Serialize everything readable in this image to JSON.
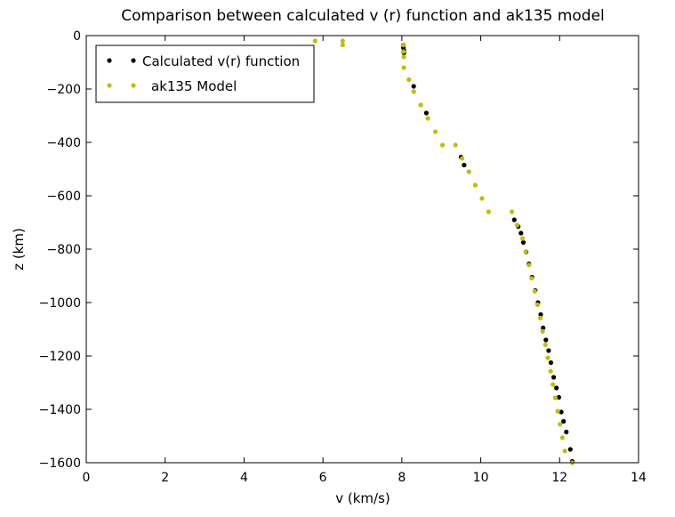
{
  "chart_data": {
    "type": "scatter",
    "title": "Comparison between calculated v (r) function and ak135 model",
    "xlabel": "v (km/s)",
    "ylabel": "z (km)",
    "xlim": [
      0,
      14
    ],
    "ylim": [
      -1600,
      0
    ],
    "xticks": [
      "0",
      "2",
      "4",
      "6",
      "8",
      "10",
      "12",
      "14"
    ],
    "yticks": [
      "0",
      "−200",
      "−400",
      "−600",
      "−800",
      "−1000",
      "−1200",
      "−1400",
      "−1600"
    ],
    "grid": false,
    "legend_position": "top-left",
    "series": [
      {
        "name": "Calculated v(r) function",
        "color": "#000000",
        "points": [
          [
            8.04,
            -35
          ],
          [
            8.04,
            -45
          ],
          [
            8.05,
            -55
          ],
          [
            8.05,
            -65
          ],
          [
            8.3,
            -190
          ],
          [
            8.62,
            -290
          ],
          [
            9.5,
            -455
          ],
          [
            9.58,
            -485
          ],
          [
            10.85,
            -690
          ],
          [
            10.95,
            -715
          ],
          [
            11.02,
            -740
          ],
          [
            11.08,
            -775
          ],
          [
            11.15,
            -810
          ],
          [
            11.22,
            -855
          ],
          [
            11.3,
            -905
          ],
          [
            11.38,
            -955
          ],
          [
            11.45,
            -1000
          ],
          [
            11.52,
            -1045
          ],
          [
            11.58,
            -1095
          ],
          [
            11.65,
            -1140
          ],
          [
            11.72,
            -1180
          ],
          [
            11.78,
            -1225
          ],
          [
            11.85,
            -1280
          ],
          [
            11.92,
            -1320
          ],
          [
            11.98,
            -1355
          ],
          [
            12.04,
            -1410
          ],
          [
            12.1,
            -1445
          ],
          [
            12.17,
            -1485
          ],
          [
            12.27,
            -1550
          ],
          [
            12.32,
            -1595
          ]
        ]
      },
      {
        "name": "ak135 Model",
        "color": "#bfbf00",
        "points": [
          [
            5.8,
            -20
          ],
          [
            6.5,
            -20
          ],
          [
            6.5,
            -35
          ],
          [
            8.04,
            -35
          ],
          [
            8.04,
            -60
          ],
          [
            8.05,
            -80
          ],
          [
            8.05,
            -120
          ],
          [
            8.18,
            -165
          ],
          [
            8.3,
            -210
          ],
          [
            8.48,
            -260
          ],
          [
            8.66,
            -310
          ],
          [
            8.85,
            -360
          ],
          [
            9.03,
            -410
          ],
          [
            9.36,
            -410
          ],
          [
            9.53,
            -460
          ],
          [
            9.7,
            -510
          ],
          [
            9.86,
            -560
          ],
          [
            10.03,
            -610
          ],
          [
            10.2,
            -660
          ],
          [
            10.79,
            -660
          ],
          [
            10.92,
            -710
          ],
          [
            11.06,
            -760
          ],
          [
            11.14,
            -809
          ],
          [
            11.22,
            -859
          ],
          [
            11.29,
            -909
          ],
          [
            11.37,
            -958
          ],
          [
            11.44,
            -1008
          ],
          [
            11.51,
            -1058
          ],
          [
            11.57,
            -1108
          ],
          [
            11.64,
            -1158
          ],
          [
            11.7,
            -1207
          ],
          [
            11.77,
            -1257
          ],
          [
            11.83,
            -1307
          ],
          [
            11.89,
            -1357
          ],
          [
            11.95,
            -1407
          ],
          [
            12.01,
            -1456
          ],
          [
            12.07,
            -1506
          ],
          [
            12.13,
            -1556
          ],
          [
            12.32,
            -1600
          ]
        ]
      }
    ]
  }
}
